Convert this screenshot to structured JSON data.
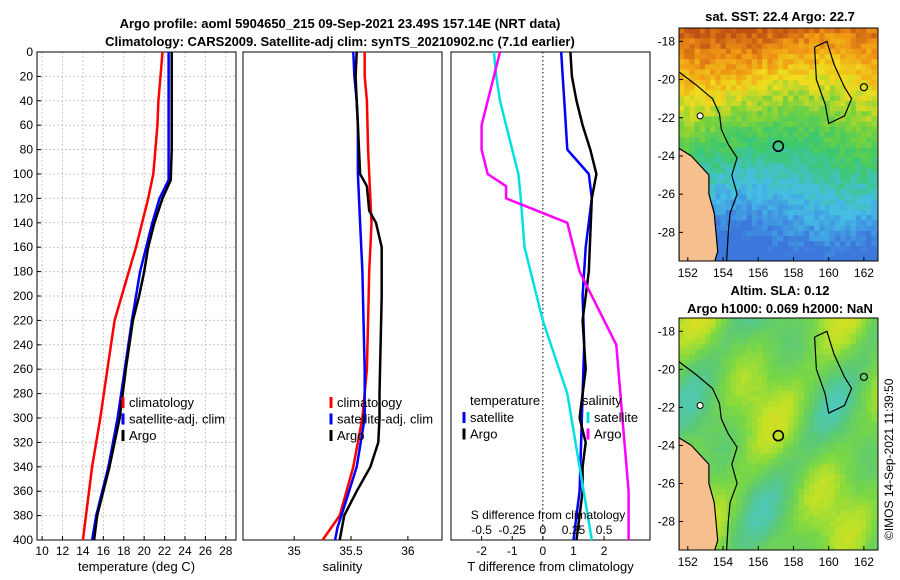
{
  "figure": {
    "title_line1": "Argo profile: aoml 5904650_215 09-Sep-2021 23.49S 157.14E (NRT data)",
    "title_line2": "Climatology: CARS2009. Satellite-adj clim: synTS_20210902.nc (7.1d earlier)",
    "side_caption": "©IMOS 14-Sep-2021 11:39:50"
  },
  "colors": {
    "climatology": "#ff0000",
    "satellite": "#0000ff",
    "argo": "#000000",
    "salinity_diff": "#ff00ff",
    "temperature_diff": "#00e0e0",
    "grid": "#c8c8c8",
    "land": "#f5c08e"
  },
  "chart_data": [
    {
      "type": "line",
      "id": "temperature",
      "xlabel": "temperature (deg C)",
      "ylabel": "",
      "xlim": [
        9.5,
        29
      ],
      "ylim": [
        400,
        0
      ],
      "xticks": [
        10,
        12,
        14,
        16,
        18,
        20,
        22,
        24,
        26,
        28
      ],
      "yticks": [
        0,
        20,
        40,
        60,
        80,
        100,
        120,
        140,
        160,
        180,
        200,
        220,
        240,
        260,
        280,
        300,
        320,
        340,
        360,
        380,
        400
      ],
      "grid": true,
      "legend": [
        "climatology",
        "satellite-adj. clim",
        "Argo"
      ],
      "series": [
        {
          "name": "climatology",
          "x": [
            21.8,
            21.6,
            21.4,
            21.3,
            21.1,
            20.9,
            20.4,
            19.8,
            19.2,
            18.5,
            17.8,
            17.1,
            16.4,
            15.7,
            14.9,
            14.0
          ],
          "y": [
            0,
            20,
            40,
            60,
            80,
            100,
            120,
            140,
            160,
            180,
            200,
            220,
            260,
            300,
            340,
            400
          ]
        },
        {
          "name": "satellite-adj. clim",
          "x": [
            22.4,
            22.4,
            22.4,
            22.4,
            22.4,
            22.4,
            21.5,
            20.8,
            20.2,
            19.6,
            19.2,
            18.8,
            18.1,
            17.4,
            16.5,
            15.3,
            14.9
          ],
          "y": [
            0,
            20,
            40,
            60,
            80,
            105,
            120,
            140,
            160,
            180,
            200,
            220,
            260,
            300,
            340,
            380,
            400
          ]
        },
        {
          "name": "Argo",
          "x": [
            22.7,
            22.7,
            22.7,
            22.7,
            22.7,
            22.6,
            21.8,
            21.0,
            20.4,
            20.0,
            19.5,
            18.9,
            18.2,
            17.6,
            16.6,
            15.4,
            15.1
          ],
          "y": [
            0,
            20,
            40,
            60,
            80,
            105,
            120,
            140,
            160,
            180,
            200,
            220,
            260,
            300,
            340,
            380,
            400
          ]
        }
      ]
    },
    {
      "type": "line",
      "id": "salinity",
      "xlabel": "salinity",
      "ylabel": "",
      "xlim": [
        34.55,
        36.3
      ],
      "ylim": [
        400,
        0
      ],
      "xticks": [
        35,
        35.5,
        36
      ],
      "yticks": [],
      "grid": false,
      "legend": [
        "climatology",
        "satellite-adj. clim",
        "Argo"
      ],
      "series": [
        {
          "name": "climatology",
          "x": [
            35.62,
            35.62,
            35.64,
            35.65,
            35.66,
            35.67,
            35.68,
            35.67,
            35.66,
            35.65,
            35.64,
            35.6,
            35.52,
            35.4,
            35.25
          ],
          "y": [
            0,
            20,
            40,
            80,
            100,
            120,
            140,
            160,
            180,
            220,
            260,
            300,
            340,
            380,
            400
          ]
        },
        {
          "name": "satellite-adj. clim",
          "x": [
            35.52,
            35.53,
            35.55,
            35.56,
            35.56,
            35.56,
            35.58,
            35.6,
            35.61,
            35.62,
            35.62,
            35.55,
            35.45,
            35.38,
            35.36
          ],
          "y": [
            0,
            20,
            40,
            60,
            80,
            100,
            140,
            180,
            220,
            260,
            300,
            340,
            370,
            390,
            400
          ]
        },
        {
          "name": "Argo",
          "x": [
            35.55,
            35.54,
            35.55,
            35.56,
            35.57,
            35.58,
            35.64,
            35.66,
            35.72,
            35.77,
            35.77,
            35.76,
            35.75,
            35.75,
            35.74,
            35.67,
            35.55,
            35.44,
            35.4
          ],
          "y": [
            0,
            20,
            40,
            60,
            80,
            100,
            110,
            130,
            140,
            160,
            200,
            240,
            280,
            300,
            320,
            340,
            360,
            380,
            400
          ]
        }
      ]
    },
    {
      "type": "line",
      "id": "differences",
      "xlabel": "T difference from climatology",
      "xlabel_top": "S difference from climatology",
      "ylabel": "",
      "xlim": [
        -3,
        3.5
      ],
      "ylim": [
        400,
        0
      ],
      "xticks": [
        -2,
        -1,
        0,
        1,
        2
      ],
      "xticks_s": [
        "-0.5",
        "-0.25",
        "0",
        "0.25",
        "0.5"
      ],
      "grid": false,
      "zero_line": true,
      "legend_left": [
        "temperature",
        "satellite",
        "Argo"
      ],
      "legend_right": [
        "salinity",
        "satellite",
        "Argo"
      ],
      "series": [
        {
          "name": "temperature satellite",
          "x": [
            0.6,
            0.65,
            0.7,
            0.75,
            0.8,
            1.5,
            1.6,
            1.4,
            1.3,
            1.35,
            1.3,
            1.25,
            1.2,
            1.1,
            1.0
          ],
          "y": [
            0,
            20,
            40,
            60,
            80,
            100,
            120,
            160,
            200,
            240,
            280,
            320,
            360,
            380,
            400
          ]
        },
        {
          "name": "temperature Argo",
          "x": [
            0.9,
            0.95,
            1.1,
            1.3,
            1.55,
            1.75,
            1.6,
            1.55,
            1.5,
            1.3,
            1.4,
            1.2,
            1.4,
            1.3,
            1.3,
            1.2,
            1.1
          ],
          "y": [
            0,
            20,
            40,
            60,
            80,
            100,
            120,
            150,
            180,
            220,
            260,
            300,
            320,
            340,
            360,
            380,
            400
          ]
        },
        {
          "name": "salinity satellite",
          "x": [
            -0.4,
            -0.38,
            -0.35,
            -0.3,
            -0.25,
            -0.2,
            -0.18,
            -0.15,
            0.0,
            0.2,
            0.3,
            0.4
          ],
          "y": [
            0,
            20,
            40,
            60,
            80,
            100,
            120,
            160,
            220,
            280,
            340,
            400
          ]
        },
        {
          "name": "salinity Argo",
          "x": [
            -0.35,
            -0.4,
            -0.45,
            -0.5,
            -0.5,
            -0.45,
            -0.3,
            -0.3,
            0.2,
            0.3,
            0.6,
            0.65,
            0.7,
            0.7
          ],
          "y": [
            0,
            20,
            40,
            60,
            80,
            100,
            110,
            120,
            140,
            180,
            240,
            300,
            360,
            400
          ]
        }
      ]
    },
    {
      "type": "heatmap",
      "id": "sst_map",
      "title": "sat. SST: 22.4 Argo: 22.7",
      "xticks": [
        152,
        154,
        156,
        158,
        160,
        162
      ],
      "yticks": [
        -18,
        -20,
        -22,
        -24,
        -26,
        -28
      ],
      "xlim": [
        151.5,
        162.8
      ],
      "ylim": [
        -29.5,
        -17.3
      ],
      "marker": {
        "lon": 157.14,
        "lat": -23.49
      }
    },
    {
      "type": "heatmap",
      "id": "sla_map",
      "title_line1": "Altim. SLA: 0.12",
      "title_line2": "Argo h1000: 0.069 h2000: NaN",
      "xticks": [
        152,
        154,
        156,
        158,
        160,
        162
      ],
      "yticks": [
        -18,
        -20,
        -22,
        -24,
        -26,
        -28
      ],
      "xlim": [
        151.5,
        162.8
      ],
      "ylim": [
        -29.5,
        -17.3
      ],
      "marker": {
        "lon": 157.14,
        "lat": -23.49
      }
    }
  ]
}
